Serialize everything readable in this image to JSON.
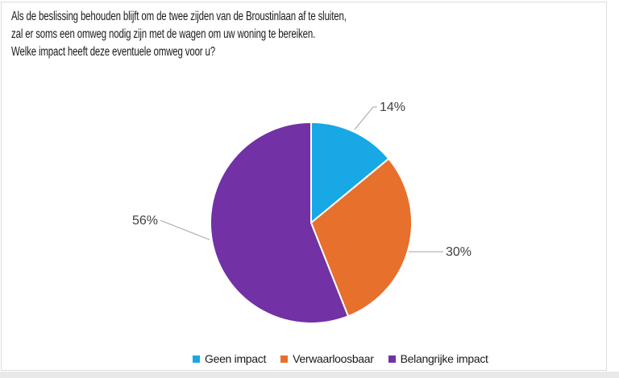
{
  "title": {
    "line1": "Als de beslissing behouden blijft om de twee zijden van de Broustinlaan af te sluiten,",
    "line2": "zal er soms een omweg nodig zijn met de wagen om uw woning te bereiken.",
    "line3": "Welke impact heeft deze eventuele omweg voor u?"
  },
  "chart_data": {
    "type": "pie",
    "categories": [
      "Geen impact",
      "Verwaarloosbaar",
      "Belangrijke impact"
    ],
    "values": [
      14,
      30,
      56
    ],
    "data_labels": [
      "14%",
      "30%",
      "56%"
    ],
    "colors": [
      "#18A8E5",
      "#E7702D",
      "#7231A4"
    ],
    "title": "",
    "legend_position": "bottom",
    "start_angle_deg": 0,
    "direction": "clockwise",
    "slice_border_color": "#FFFFFF",
    "label_color": "#404040",
    "leader_line_color": "#A6A6A6"
  }
}
